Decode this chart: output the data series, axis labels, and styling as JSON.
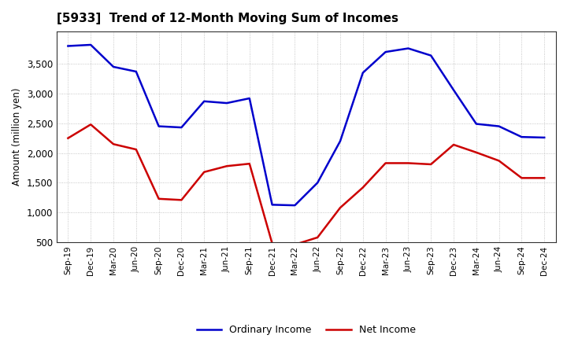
{
  "title": "[5933]  Trend of 12-Month Moving Sum of Incomes",
  "ylabel": "Amount (million yen)",
  "x_labels": [
    "Sep-19",
    "Dec-19",
    "Mar-20",
    "Jun-20",
    "Sep-20",
    "Dec-20",
    "Mar-21",
    "Jun-21",
    "Sep-21",
    "Dec-21",
    "Mar-22",
    "Jun-22",
    "Sep-22",
    "Dec-22",
    "Mar-23",
    "Jun-23",
    "Sep-23",
    "Dec-23",
    "Mar-24",
    "Jun-24",
    "Sep-24",
    "Dec-24"
  ],
  "ordinary_income": [
    3800,
    3820,
    3450,
    3370,
    2450,
    2430,
    2870,
    2840,
    2920,
    1130,
    1120,
    1500,
    2200,
    3350,
    3700,
    3760,
    3640,
    3060,
    2490,
    2450,
    2270,
    2260
  ],
  "net_income": [
    2250,
    2480,
    2150,
    2060,
    1230,
    1210,
    1680,
    1780,
    1820,
    480,
    460,
    580,
    1080,
    1420,
    1830,
    1830,
    1810,
    2140,
    2010,
    1870,
    1580,
    1580
  ],
  "ordinary_color": "#0000cc",
  "net_color": "#cc0000",
  "ylim_min": 500,
  "ylim_max": 4050,
  "yticks": [
    500,
    1000,
    1500,
    2000,
    2500,
    3000,
    3500
  ],
  "bg_color": "#ffffff",
  "plot_bg_color": "#ffffff",
  "grid_color": "#999999",
  "legend_ordinary": "Ordinary Income",
  "legend_net": "Net Income",
  "line_width": 1.8
}
